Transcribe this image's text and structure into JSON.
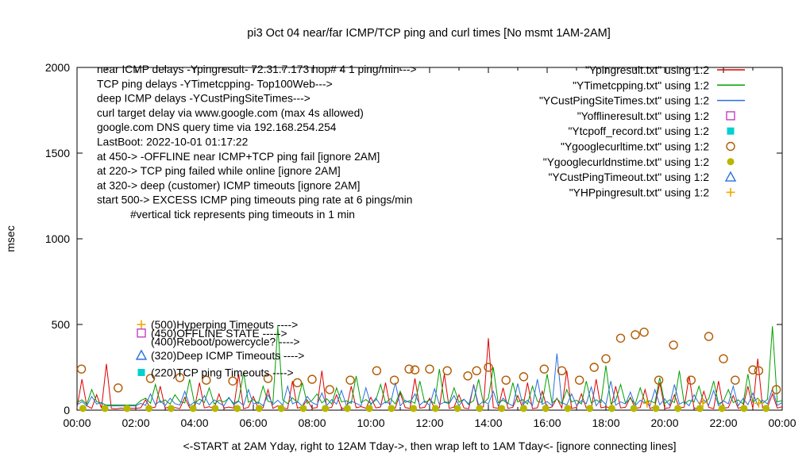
{
  "chart_data": {
    "type": "line",
    "title": "pi3 Oct 04  near/far ICMP/TCP ping and curl times [No msmt 1AM-2AM]",
    "ylabel": "msec",
    "xlabel": "<-START at 2AM Yday, right to 12AM Tday->, then wrap left to 1AM Tday<- [ignore connecting lines]",
    "ylim": [
      0,
      2000
    ],
    "y_ticks": [
      0,
      500,
      1000,
      1500,
      2000
    ],
    "x_ticks": [
      "00:00",
      "02:00",
      "04:00",
      "06:00",
      "08:00",
      "10:00",
      "12:00",
      "14:00",
      "16:00",
      "18:00",
      "20:00",
      "22:00",
      "00:00"
    ],
    "x_range_hours": [
      0,
      24
    ],
    "grid": false,
    "legend_position": "top-right",
    "legend": [
      {
        "label": "\"Ypingresult.txt\" using 1:2",
        "marker": "line",
        "color": "#dd0000"
      },
      {
        "label": "\"YTimetcpping.txt\" using 1:2",
        "marker": "line",
        "color": "#00a000"
      },
      {
        "label": "\"YCustPingSiteTimes.txt\" using 1:2",
        "marker": "line",
        "color": "#2a6fdf"
      },
      {
        "label": "\"Yofflineresult.txt\" using 1:2",
        "marker": "square-open",
        "color": "#c040c0"
      },
      {
        "label": "\"Ytcpoff_record.txt\" using 1:2",
        "marker": "square-filled",
        "color": "#00d0d0"
      },
      {
        "label": "\"Ygooglecurltime.txt\" using 1:2",
        "marker": "circle-open",
        "color": "#b25900"
      },
      {
        "label": "\"Ygooglecurldnstime.txt\" using 1:2",
        "marker": "circle-filled",
        "color": "#b8b800"
      },
      {
        "label": "\"YCustPingTimeout.txt\" using 1:2",
        "marker": "triangle-open",
        "color": "#2a6fdf"
      },
      {
        "label": "\"YHPpingresult.txt\" using 1:2",
        "marker": "plus",
        "color": "#eeaa00"
      }
    ],
    "annotations": [
      {
        "t": "near ICMP delays -Ypingresult- 72.31.7.173 hop# 4 1 ping/min--->",
        "i": 0
      },
      {
        "t": "TCP ping delays -YTimetcpping- Top100Web--->",
        "i": 0
      },
      {
        "t": "deep ICMP delays -YCustPingSiteTimes--->",
        "i": 0
      },
      {
        "t": "curl target delay via www.google.com (max 4s allowed)",
        "i": 0
      },
      {
        "t": "google.com DNS query time via 192.168.254.254",
        "i": 0
      },
      {
        "t": "LastBoot: 2022-10-01 01:17:22",
        "i": 0
      },
      {
        "t": "at 450-> -OFFLINE near ICMP+TCP ping fail [ignore 2AM]",
        "i": 0
      },
      {
        "t": "at 220-> TCP ping failed while online [ignore 2AM]",
        "i": 0
      },
      {
        "t": "at 320-> deep (customer) ICMP timeouts [ignore 2AM]",
        "i": 0
      },
      {
        "t": "start 500-> EXCESS ICMP ping timeouts ping rate at 6 pings/min",
        "i": 0
      },
      {
        "t": "#vertical tick represents ping timeouts in 1 min",
        "i": 42
      }
    ],
    "threshold_labels": [
      {
        "y": 500,
        "marker": "plus",
        "color": "#eeaa00",
        "text": "(500)Hyperping Timeouts ---->"
      },
      {
        "y": 450,
        "marker": "square-open",
        "color": "#c040c0",
        "text": "(450)OFFLINE STATE ----->"
      },
      {
        "y": 400,
        "marker": "none",
        "color": "",
        "text": "(400)Reboot/powercycle? ---->"
      },
      {
        "y": 320,
        "marker": "triangle-open",
        "color": "#2a6fdf",
        "text": "(320)Deep ICMP Timeouts ---->"
      },
      {
        "y": 220,
        "marker": "square-filled",
        "color": "#00d0d0",
        "text": "(220)TCP ping Timeouts ---->"
      }
    ],
    "series": [
      {
        "name": "near-icmp-ping",
        "file": "Ypingresult.txt",
        "type": "line",
        "color": "#dd0000",
        "x_start": 0,
        "x_step": 0.1666667,
        "y": [
          15,
          180,
          25,
          10,
          90,
          12,
          270,
          10,
          8,
          12,
          9,
          11,
          10,
          14,
          60,
          12,
          18,
          140,
          10,
          22,
          15,
          9,
          75,
          14,
          11,
          160,
          13,
          20,
          10,
          95,
          12,
          18,
          12,
          210,
          9,
          16,
          80,
          11,
          14,
          120,
          10,
          25,
          13,
          9,
          170,
          12,
          19,
          60,
          11,
          15,
          230,
          10,
          17,
          90,
          12,
          8,
          140,
          14,
          21,
          11,
          75,
          13,
          19,
          160,
          9,
          12,
          100,
          15,
          10,
          185,
          12,
          16,
          70,
          11,
          14,
          210,
          10,
          18,
          90,
          13,
          9,
          150,
          12,
          20,
          420,
          15,
          11,
          130,
          10,
          17,
          85,
          12,
          160,
          9,
          14,
          110,
          11,
          19,
          70,
          13,
          230,
          10,
          16,
          95,
          12,
          8,
          180,
          14,
          20,
          11,
          140,
          13,
          17,
          75,
          10,
          15,
          120,
          9,
          22,
          160,
          11,
          14,
          90,
          12,
          18,
          200,
          10,
          13,
          110,
          16,
          9,
          170,
          12,
          15,
          85,
          11,
          19,
          140,
          10,
          300,
          13,
          17,
          95,
          12,
          20
        ]
      },
      {
        "name": "tcp-ping",
        "file": "YTimetcpping.txt",
        "type": "line",
        "color": "#00a000",
        "x_start": 0,
        "x_step": 0.1666667,
        "y": [
          45,
          60,
          35,
          120,
          50,
          40,
          30,
          30,
          30,
          30,
          30,
          30,
          30,
          55,
          70,
          40,
          150,
          45,
          60,
          35,
          90,
          50,
          42,
          180,
          38,
          65,
          44,
          130,
          36,
          58,
          48,
          70,
          40,
          55,
          220,
          46,
          62,
          38,
          140,
          52,
          44,
          490,
          60,
          38,
          72,
          45,
          160,
          40,
          58,
          95,
          42,
          66,
          36,
          130,
          48,
          54,
          40,
          200,
          44,
          62,
          38,
          58,
          150,
          42,
          68,
          36,
          110,
          46,
          55,
          40,
          170,
          44,
          60,
          38,
          240,
          50,
          42,
          130,
          46,
          64,
          36,
          56,
          180,
          40,
          70,
          250,
          44,
          58,
          38,
          160,
          48,
          62,
          36,
          140,
          52,
          44,
          210,
          40,
          66,
          38,
          120,
          48,
          58,
          36,
          170,
          42,
          60,
          44,
          260,
          38,
          56,
          150,
          40,
          68,
          36,
          130,
          46,
          54,
          42,
          190,
          38,
          60,
          44,
          230,
          36,
          58,
          48,
          140,
          40,
          66,
          170,
          38,
          52,
          120,
          44,
          60,
          36,
          210,
          46,
          70,
          40,
          64,
          490,
          48,
          56
        ]
      },
      {
        "name": "deep-icmp-ping",
        "file": "YCustPingSiteTimes.txt",
        "type": "line",
        "color": "#2a6fdf",
        "x_start": 0,
        "x_step": 0.1666667,
        "y": [
          30,
          50,
          25,
          80,
          35,
          45,
          25,
          25,
          25,
          25,
          25,
          25,
          25,
          40,
          28,
          95,
          32,
          55,
          26,
          70,
          38,
          30,
          110,
          27,
          48,
          34,
          85,
          29,
          60,
          42,
          25,
          75,
          31,
          52,
          28,
          120,
          36,
          47,
          26,
          90,
          33,
          58,
          29,
          140,
          37,
          50,
          24,
          80,
          44,
          31,
          100,
          27,
          62,
          35,
          115,
          28,
          53,
          40,
          26,
          130,
          32,
          70,
          29,
          48,
          36,
          160,
          25,
          58,
          42,
          95,
          30,
          54,
          28,
          125,
          33,
          46,
          38,
          85,
          26,
          64,
          31,
          145,
          29,
          52,
          36,
          110,
          27,
          70,
          40,
          25,
          155,
          32,
          58,
          28,
          180,
          34,
          50,
          26,
          330,
          45,
          30,
          95,
          28,
          56,
          38,
          135,
          26,
          62,
          33,
          170,
          29,
          48,
          36,
          105,
          27,
          58,
          42,
          25,
          120,
          31,
          66,
          28,
          150,
          35,
          50,
          26,
          90,
          39,
          60,
          30,
          115,
          27,
          54,
          37,
          140,
          25,
          68,
          32,
          100,
          29,
          58,
          36,
          125,
          28,
          45
        ]
      },
      {
        "name": "google-curl-time",
        "file": "Ygooglecurltime.txt",
        "type": "points",
        "marker": "circle-open",
        "color": "#b25900",
        "points": [
          [
            0.15,
            240
          ],
          [
            1.4,
            130
          ],
          [
            2.5,
            185
          ],
          [
            3.5,
            190
          ],
          [
            4.4,
            175
          ],
          [
            5.3,
            170
          ],
          [
            6.5,
            185
          ],
          [
            7.5,
            160
          ],
          [
            8.0,
            180
          ],
          [
            8.6,
            120
          ],
          [
            9.3,
            175
          ],
          [
            10.2,
            230
          ],
          [
            10.8,
            175
          ],
          [
            11.3,
            240
          ],
          [
            11.5,
            235
          ],
          [
            12.0,
            240
          ],
          [
            12.6,
            230
          ],
          [
            13.3,
            200
          ],
          [
            13.6,
            230
          ],
          [
            14.0,
            250
          ],
          [
            14.6,
            175
          ],
          [
            15.2,
            195
          ],
          [
            15.9,
            240
          ],
          [
            16.5,
            230
          ],
          [
            17.1,
            175
          ],
          [
            17.6,
            250
          ],
          [
            18.0,
            300
          ],
          [
            18.5,
            420
          ],
          [
            19.0,
            440
          ],
          [
            19.3,
            455
          ],
          [
            19.8,
            175
          ],
          [
            20.3,
            380
          ],
          [
            20.9,
            175
          ],
          [
            21.5,
            430
          ],
          [
            22.0,
            300
          ],
          [
            22.4,
            175
          ],
          [
            23.0,
            235
          ],
          [
            23.2,
            230
          ],
          [
            23.8,
            120
          ]
        ]
      },
      {
        "name": "google-dns-time",
        "file": "Ygooglecurldnstime.txt",
        "type": "points",
        "marker": "circle-filled",
        "color": "#b8b800",
        "points": [
          [
            0.2,
            10
          ],
          [
            0.95,
            10
          ],
          [
            1.7,
            10
          ],
          [
            2.45,
            10
          ],
          [
            3.2,
            10
          ],
          [
            3.95,
            10
          ],
          [
            4.7,
            10
          ],
          [
            5.45,
            10
          ],
          [
            6.2,
            10
          ],
          [
            6.95,
            10
          ],
          [
            7.7,
            10
          ],
          [
            8.45,
            10
          ],
          [
            9.2,
            10
          ],
          [
            9.95,
            10
          ],
          [
            10.7,
            10
          ],
          [
            11.45,
            10
          ],
          [
            12.2,
            10
          ],
          [
            12.95,
            10
          ],
          [
            13.7,
            10
          ],
          [
            14.45,
            10
          ],
          [
            15.2,
            10
          ],
          [
            15.95,
            10
          ],
          [
            16.7,
            10
          ],
          [
            17.45,
            10
          ],
          [
            18.2,
            10
          ],
          [
            18.95,
            10
          ],
          [
            19.7,
            10
          ],
          [
            20.45,
            10
          ],
          [
            21.2,
            10
          ],
          [
            21.95,
            10
          ],
          [
            22.7,
            10
          ],
          [
            23.45,
            10
          ]
        ]
      },
      {
        "name": "offline-state",
        "file": "Yofflineresult.txt",
        "type": "points",
        "marker": "square-open",
        "color": "#c040c0",
        "points": []
      },
      {
        "name": "tcpoff-record",
        "file": "Ytcpoff_record.txt",
        "type": "points",
        "marker": "square-filled",
        "color": "#00d0d0",
        "points": []
      },
      {
        "name": "cust-ping-timeout",
        "file": "YCustPingTimeout.txt",
        "type": "points",
        "marker": "triangle-open",
        "color": "#2a6fdf",
        "points": []
      },
      {
        "name": "hp-ping",
        "file": "YHPpingresult.txt",
        "type": "points",
        "marker": "plus",
        "color": "#eeaa00",
        "points": [
          [
            19.4,
            40
          ],
          [
            21.3,
            45
          ],
          [
            23.2,
            40
          ]
        ]
      }
    ]
  }
}
